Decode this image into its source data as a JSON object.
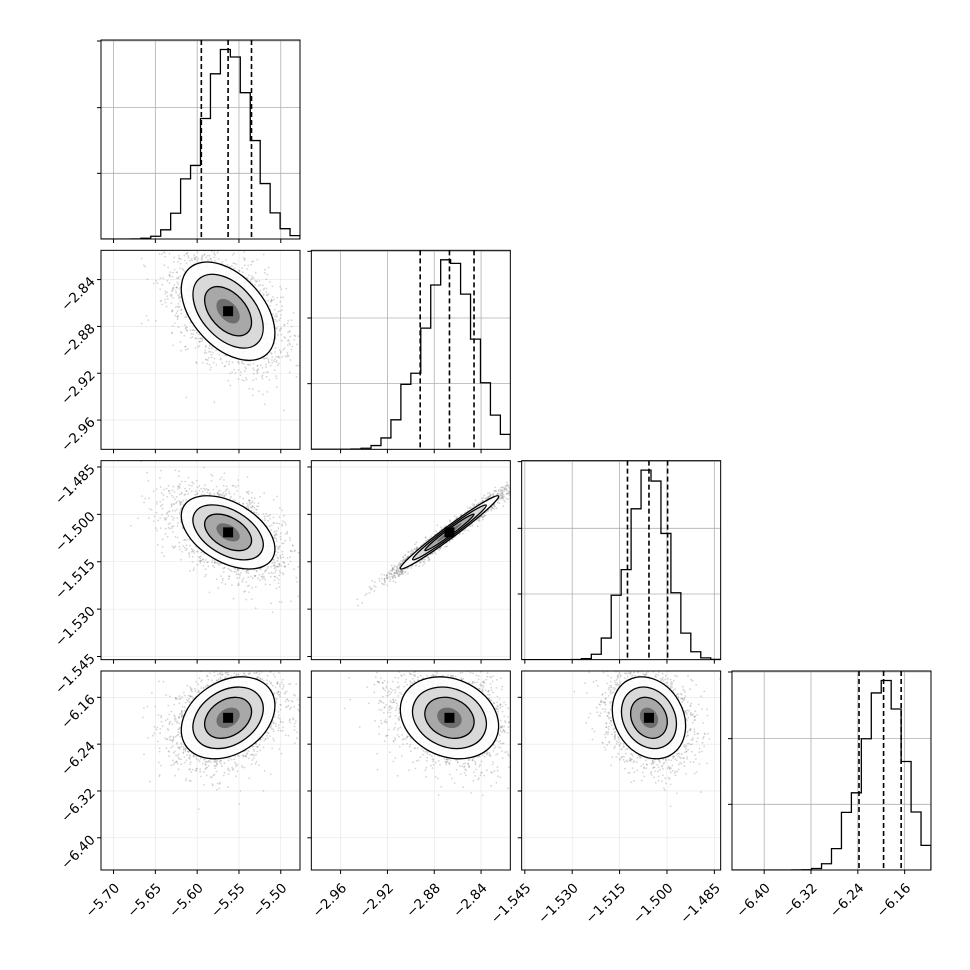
{
  "chart_data": {
    "type": "corner",
    "parameters": [
      {
        "range": [
          -5.715,
          -5.477
        ],
        "ticks": [
          -5.7,
          -5.65,
          -5.6,
          -5.55,
          -5.5
        ],
        "tick_labels": [
          "−5.70",
          "−5.65",
          "−5.60",
          "−5.55",
          "−5.50"
        ],
        "quantiles": [
          -5.595,
          -5.563,
          -5.535
        ],
        "mean": -5.563,
        "sd": 0.028
      },
      {
        "range": [
          -2.985,
          -2.815
        ],
        "ticks": [
          -2.96,
          -2.92,
          -2.88,
          -2.84
        ],
        "tick_labels": [
          "−2.96",
          "−2.92",
          "−2.88",
          "−2.84"
        ],
        "quantiles": [
          -2.892,
          -2.867,
          -2.846
        ],
        "mean": -2.867,
        "sd": 0.021
      },
      {
        "range": [
          -1.546,
          -1.483
        ],
        "ticks": [
          -1.545,
          -1.53,
          -1.515,
          -1.5,
          -1.485
        ],
        "tick_labels": [
          "−1.545",
          "−1.530",
          "−1.515",
          "−1.500",
          "−1.485"
        ],
        "quantiles": [
          -1.5125,
          -1.5057,
          -1.4998
        ],
        "mean": -1.5057,
        "sd": 0.0058
      },
      {
        "range": [
          -6.455,
          -6.115
        ],
        "ticks": [
          -6.4,
          -6.32,
          -6.24,
          -6.16
        ],
        "tick_labels": [
          "−6.40",
          "−6.32",
          "−6.24",
          "−6.16"
        ],
        "quantiles": [
          -6.238,
          -6.196,
          -6.166
        ],
        "mean": -6.195,
        "sd": 0.035
      }
    ],
    "correlations": [
      {
        "pair": [
          1,
          0
        ],
        "r": -0.45
      },
      {
        "pair": [
          2,
          0
        ],
        "r": -0.45
      },
      {
        "pair": [
          2,
          1
        ],
        "r": 0.98
      },
      {
        "pair": [
          3,
          0
        ],
        "r": 0.3
      },
      {
        "pair": [
          3,
          1
        ],
        "r": -0.2
      },
      {
        "pair": [
          3,
          2
        ],
        "r": -0.2
      }
    ],
    "grid": true,
    "contour_levels": 3
  }
}
